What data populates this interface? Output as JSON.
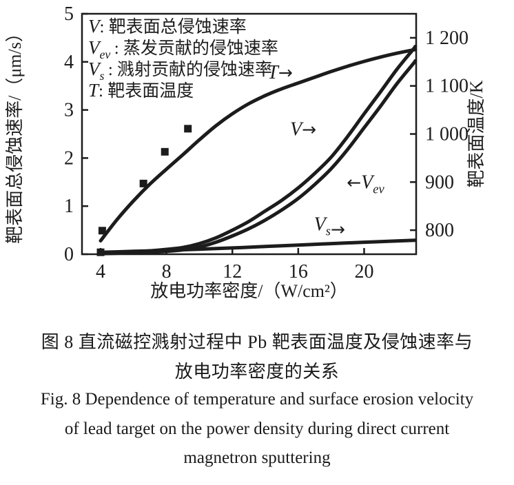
{
  "figure": {
    "captions": {
      "cn_line1": "图 8  直流磁控溅射过程中 Pb 靶表面温度及侵蚀速率与",
      "cn_line2": "放电功率密度的关系",
      "en_line1": "Fig. 8  Dependence of temperature and surface erosion velocity",
      "en_line2": "of lead target on the power density during direct current",
      "en_line3": "magnetron sputtering"
    }
  },
  "chart_data": {
    "type": "line",
    "title": "",
    "xlabel": "放电功率密度/（W/cm²）",
    "ylabel_left": "靶表面总侵蚀速率/（μm/s）",
    "ylabel_right": "靶表面温度/K",
    "xlim": [
      2.87,
      23.16
    ],
    "ylim_left": [
      0,
      5
    ],
    "ylim_right": [
      750,
      1250
    ],
    "x_ticks": [
      4,
      8,
      12,
      16,
      20
    ],
    "y_ticks_left": [
      0,
      1,
      2,
      3,
      4,
      5
    ],
    "y_ticks_right": [
      {
        "value": 800,
        "label": "800"
      },
      {
        "value": 900,
        "label": "900"
      },
      {
        "value": 1000,
        "label": "1 000"
      },
      {
        "value": 1100,
        "label": "1 100"
      },
      {
        "value": 1200,
        "label": "1 200"
      }
    ],
    "grid": false,
    "line_color": "#1c1c1c",
    "legend_position": "top-left-inside",
    "legend": [
      {
        "sym": "V",
        "sub": "",
        "text": ": 靶表面总侵蚀速率"
      },
      {
        "sym": "V",
        "sub": "ev",
        "text": ": 蒸发贡献的侵蚀速率"
      },
      {
        "sym": "V",
        "sub": "s",
        "text": ": 溅射贡献的侵蚀速率"
      },
      {
        "sym": "T",
        "sub": "",
        "text": ": 靶表面温度"
      }
    ],
    "series": [
      {
        "name": "T",
        "id": "temperature-curve",
        "axis": "right",
        "description": "靶表面温度",
        "x": [
          4,
          5,
          6,
          7,
          8,
          9,
          10,
          11,
          12,
          13,
          14,
          15,
          16,
          17,
          18,
          19,
          20,
          21,
          22,
          23,
          23.1
        ],
        "y": [
          778,
          822,
          861,
          896,
          927,
          957,
          988,
          1017,
          1042,
          1063,
          1080,
          1094,
          1106,
          1118,
          1130,
          1141,
          1151,
          1160,
          1168,
          1175,
          1176
        ]
      },
      {
        "name": "V",
        "id": "total-erosion-curve",
        "axis": "left",
        "description": "靶表面总侵蚀速率",
        "x": [
          4,
          5,
          6,
          7,
          8,
          9,
          10,
          11,
          12,
          13,
          14,
          15,
          16,
          17,
          18,
          19,
          20,
          21,
          22,
          23,
          23.1
        ],
        "y": [
          0.02,
          0.03,
          0.05,
          0.07,
          0.1,
          0.14,
          0.22,
          0.34,
          0.5,
          0.68,
          0.9,
          1.12,
          1.38,
          1.68,
          2.02,
          2.45,
          2.92,
          3.38,
          3.85,
          4.27,
          4.32
        ]
      },
      {
        "name": "V_ev",
        "id": "evaporation-erosion-curve",
        "axis": "left",
        "description": "蒸发贡献的侵蚀速率",
        "x": [
          4,
          5,
          6,
          7,
          8,
          9,
          10,
          11,
          12,
          13,
          14,
          15,
          16,
          17,
          18,
          19,
          20,
          21,
          22,
          23,
          23.1
        ],
        "y": [
          0.01,
          0.02,
          0.03,
          0.04,
          0.06,
          0.09,
          0.15,
          0.25,
          0.38,
          0.53,
          0.71,
          0.92,
          1.16,
          1.45,
          1.78,
          2.18,
          2.63,
          3.08,
          3.55,
          3.97,
          4.02
        ]
      },
      {
        "name": "V_s",
        "id": "sputtering-erosion-curve",
        "axis": "left",
        "description": "溅射贡献的侵蚀速率",
        "x": [
          4,
          6,
          8,
          10,
          12,
          14,
          16,
          18,
          20,
          22,
          23.1
        ],
        "y": [
          0.04,
          0.06,
          0.08,
          0.105,
          0.13,
          0.16,
          0.19,
          0.22,
          0.25,
          0.275,
          0.29
        ]
      }
    ],
    "scatter": {
      "name": "measured-points",
      "marker": "square",
      "axis": "left",
      "x": [
        4.0,
        4.1,
        6.6,
        7.9,
        9.3
      ],
      "y": [
        0.04,
        0.49,
        1.47,
        2.13,
        2.61
      ]
    },
    "annotations": [
      {
        "id": "curve-label-T",
        "sym": "T",
        "sub": "",
        "arrow": "→",
        "arrow_side": "after",
        "arrow_low": false,
        "x": 14.9,
        "v": 3.78
      },
      {
        "id": "curve-label-V",
        "sym": "V",
        "sub": "",
        "arrow": "→",
        "arrow_side": "after",
        "arrow_low": false,
        "x": 16.3,
        "v": 2.6
      },
      {
        "id": "curve-label-Vev",
        "sym": "V",
        "sub": "ev",
        "arrow": "←",
        "arrow_side": "before",
        "arrow_low": false,
        "x": 20.2,
        "v": 1.5
      },
      {
        "id": "curve-label-Vs",
        "sym": "V",
        "sub": "s",
        "arrow": "→",
        "arrow_side": "after",
        "arrow_low": true,
        "x": 17.9,
        "v": 0.62
      }
    ]
  }
}
